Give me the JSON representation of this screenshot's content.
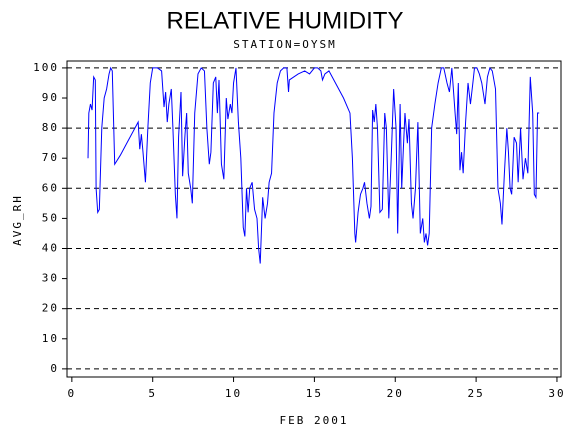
{
  "chart_data": {
    "type": "line",
    "title": "RELATIVE HUMIDITY",
    "subtitle": "STATION=OYSM",
    "x_label": "FEB 2001",
    "y_label": "AVG_RH",
    "xlim": [
      -0.3,
      30.25
    ],
    "ylim": [
      -2.7,
      102.3
    ],
    "xticks": [
      0,
      5,
      10,
      15,
      20,
      25,
      30
    ],
    "yticks": [
      0,
      10,
      20,
      30,
      40,
      50,
      60,
      70,
      80,
      90,
      100
    ],
    "ygrid": [
      0,
      20,
      40,
      60,
      80,
      100
    ],
    "series": [
      {
        "name": "AVG_RH",
        "color": "#0000ff",
        "x": [
          1.0,
          1.05,
          1.15,
          1.25,
          1.35,
          1.45,
          1.5,
          1.6,
          1.7,
          1.85,
          2.0,
          2.15,
          2.3,
          2.4,
          2.5,
          2.65,
          3.0,
          4.1,
          4.2,
          4.3,
          4.4,
          4.55,
          4.7,
          4.85,
          5.0,
          5.3,
          5.55,
          5.7,
          5.8,
          5.9,
          6.0,
          6.15,
          6.25,
          6.4,
          6.5,
          6.6,
          6.75,
          6.85,
          7.0,
          7.1,
          7.2,
          7.35,
          7.45,
          7.6,
          7.8,
          8.0,
          8.2,
          8.35,
          8.5,
          8.6,
          8.75,
          8.9,
          9.0,
          9.1,
          9.25,
          9.4,
          9.55,
          9.65,
          9.8,
          9.9,
          10.0,
          10.15,
          10.3,
          10.45,
          10.6,
          10.7,
          10.8,
          10.9,
          11.0,
          11.15,
          11.3,
          11.45,
          11.55,
          11.65,
          11.8,
          11.95,
          12.1,
          12.2,
          12.35,
          12.5,
          12.7,
          12.9,
          13.1,
          13.3,
          13.4,
          13.45,
          14.0,
          14.4,
          14.7,
          15.0,
          15.2,
          15.4,
          15.5,
          15.65,
          15.9,
          16.8,
          17.2,
          17.35,
          17.5,
          17.55,
          17.7,
          17.85,
          18.0,
          18.1,
          18.25,
          18.4,
          18.5,
          18.6,
          18.7,
          18.8,
          18.9,
          19.05,
          19.2,
          19.35,
          19.45,
          19.6,
          19.75,
          19.9,
          20.05,
          20.15,
          20.3,
          20.4,
          20.5,
          20.6,
          20.75,
          20.85,
          21.0,
          21.1,
          21.25,
          21.4,
          21.55,
          21.7,
          21.8,
          21.9,
          22.0,
          22.1,
          22.25,
          22.45,
          22.65,
          22.85,
          23.0,
          23.2,
          23.35,
          23.5,
          23.7,
          23.8,
          23.9,
          24.0,
          24.1,
          24.2,
          24.35,
          24.5,
          24.65,
          24.8,
          24.9,
          25.05,
          25.2,
          25.35,
          25.55,
          25.7,
          25.85,
          26.0,
          26.2,
          26.35,
          26.5,
          26.6,
          26.75,
          26.9,
          27.0,
          27.1,
          27.2,
          27.35,
          27.5,
          27.6,
          27.75,
          27.9,
          28.05,
          28.2,
          28.35,
          28.5,
          28.6,
          28.7,
          28.8,
          28.9
        ],
        "values": [
          70,
          85,
          88,
          86,
          97,
          96,
          60,
          52,
          53,
          80,
          90,
          93,
          98,
          100,
          99,
          68,
          71,
          82,
          73,
          78,
          72,
          62,
          80,
          95,
          100,
          100,
          99,
          87,
          92,
          82,
          88,
          93,
          80,
          58,
          50,
          77,
          92,
          64,
          78,
          85,
          65,
          60,
          55,
          85,
          98,
          100,
          99,
          80,
          68,
          72,
          95,
          97,
          85,
          96,
          68,
          63,
          90,
          83,
          88,
          85,
          95,
          100,
          82,
          70,
          47,
          44,
          60,
          52,
          60,
          62,
          53,
          50,
          40,
          35,
          57,
          50,
          55,
          62,
          65,
          85,
          95,
          99,
          100,
          100,
          92,
          96,
          98,
          99,
          98,
          100,
          100,
          99,
          96,
          98,
          99,
          90,
          85,
          70,
          45,
          42,
          52,
          58,
          60,
          62,
          55,
          50,
          54,
          86,
          82,
          88,
          80,
          52,
          53,
          85,
          80,
          50,
          70,
          93,
          80,
          45,
          88,
          60,
          73,
          85,
          75,
          83,
          55,
          50,
          60,
          82,
          45,
          50,
          42,
          45,
          41,
          45,
          80,
          88,
          95,
          100,
          100,
          95,
          92,
          100,
          85,
          78,
          95,
          66,
          72,
          65,
          82,
          95,
          88,
          95,
          100,
          100,
          98,
          95,
          88,
          97,
          100,
          99,
          93,
          60,
          55,
          48,
          65,
          80,
          72,
          60,
          58,
          77,
          75,
          62,
          80,
          63,
          70,
          65,
          97,
          85,
          58,
          57,
          85,
          85
        ]
      }
    ]
  }
}
